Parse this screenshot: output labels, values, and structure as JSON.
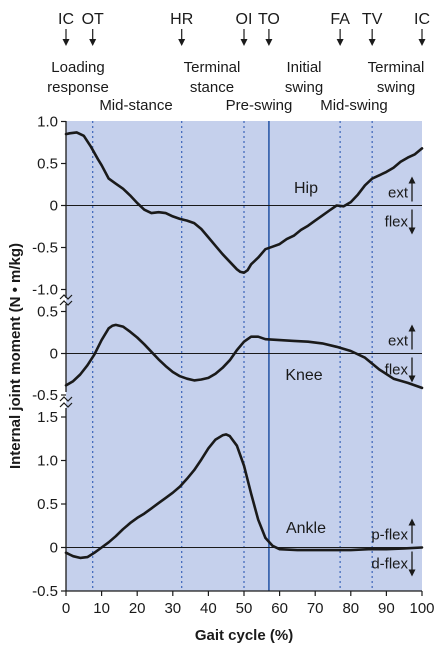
{
  "chart_data": {
    "type": "line",
    "xlabel": "Gait cycle (%)",
    "ylabel": "Internal joint moment (N • m/kg)",
    "xlim": [
      0,
      100
    ],
    "x_ticks": [
      "0",
      "10",
      "20",
      "30",
      "40",
      "50",
      "60",
      "70",
      "80",
      "90",
      "100"
    ],
    "grid": false,
    "colors": {
      "plot_bg": "#c5d0ec",
      "line": "#1a1a1a",
      "event_dotted": "#3a63b8",
      "toe_off_solid": "#2d5aa8"
    },
    "events": [
      {
        "label": "IC",
        "x": 0
      },
      {
        "label": "OT",
        "x": 7.5
      },
      {
        "label": "HR",
        "x": 32.5
      },
      {
        "label": "OI",
        "x": 50
      },
      {
        "label": "TO",
        "x": 57
      },
      {
        "label": "FA",
        "x": 77
      },
      {
        "label": "TV",
        "x": 86
      },
      {
        "label": "IC",
        "x": 100
      }
    ],
    "phases": [
      {
        "lines": [
          "Loading",
          "response"
        ]
      },
      {
        "lines": [
          "Mid-stance"
        ]
      },
      {
        "lines": [
          "Terminal",
          "stance"
        ]
      },
      {
        "lines": [
          "Pre-swing"
        ]
      },
      {
        "lines": [
          "Initial",
          "swing"
        ]
      },
      {
        "lines": [
          "Mid-swing"
        ]
      },
      {
        "lines": [
          "Terminal",
          "swing"
        ]
      }
    ],
    "panels": [
      {
        "name": "Hip",
        "ylim": [
          -1.0,
          1.0
        ],
        "y_ticks": [
          "1.0",
          "0.5",
          "0",
          "-0.5",
          "-1.0"
        ],
        "tick_values": [
          1.0,
          0.5,
          0,
          -0.5,
          -1.0
        ],
        "direction_labels": {
          "positive": "ext",
          "negative": "flex"
        },
        "x": [
          0,
          1,
          3,
          5,
          7,
          9,
          10,
          12,
          14,
          16,
          18,
          20,
          22,
          24,
          26,
          28,
          30,
          32,
          34,
          36,
          38,
          40,
          42,
          44,
          46,
          48,
          49,
          50,
          51,
          52,
          54,
          56,
          58,
          60,
          62,
          64,
          66,
          68,
          70,
          72,
          74,
          76,
          78,
          80,
          82,
          84,
          86,
          88,
          90,
          92,
          94,
          96,
          98,
          100
        ],
        "values": [
          0.85,
          0.86,
          0.87,
          0.83,
          0.7,
          0.55,
          0.48,
          0.32,
          0.26,
          0.2,
          0.12,
          0.03,
          -0.05,
          -0.09,
          -0.08,
          -0.09,
          -0.13,
          -0.16,
          -0.18,
          -0.21,
          -0.28,
          -0.38,
          -0.48,
          -0.58,
          -0.67,
          -0.76,
          -0.79,
          -0.8,
          -0.77,
          -0.7,
          -0.62,
          -0.52,
          -0.49,
          -0.46,
          -0.4,
          -0.36,
          -0.29,
          -0.24,
          -0.18,
          -0.12,
          -0.06,
          0.0,
          -0.01,
          0.04,
          0.13,
          0.24,
          0.32,
          0.36,
          0.4,
          0.45,
          0.52,
          0.57,
          0.61,
          0.68
        ]
      },
      {
        "name": "Knee",
        "ylim": [
          -0.5,
          0.5
        ],
        "y_ticks": [
          "0.5",
          "0",
          "-0.5"
        ],
        "tick_values": [
          0.5,
          0,
          -0.5
        ],
        "direction_labels": {
          "positive": "ext",
          "negative": "flex"
        },
        "x": [
          0,
          2,
          4,
          6,
          8,
          10,
          12,
          13,
          14,
          16,
          18,
          20,
          22,
          24,
          26,
          28,
          30,
          32,
          34,
          36,
          38,
          40,
          42,
          44,
          46,
          48,
          50,
          52,
          54,
          56,
          60,
          64,
          68,
          72,
          76,
          80,
          84,
          88,
          92,
          96,
          100
        ],
        "values": [
          -0.38,
          -0.33,
          -0.25,
          -0.14,
          -0.01,
          0.16,
          0.3,
          0.33,
          0.34,
          0.32,
          0.26,
          0.19,
          0.11,
          0.02,
          -0.07,
          -0.15,
          -0.22,
          -0.27,
          -0.3,
          -0.32,
          -0.31,
          -0.29,
          -0.24,
          -0.17,
          -0.08,
          0.04,
          0.14,
          0.2,
          0.2,
          0.17,
          0.16,
          0.15,
          0.14,
          0.12,
          0.08,
          0.03,
          -0.05,
          -0.19,
          -0.3,
          -0.35,
          -0.41
        ]
      },
      {
        "name": "Ankle",
        "ylim": [
          -0.5,
          1.5
        ],
        "y_ticks": [
          "1.5",
          "1.0",
          "0.5",
          "0",
          "-0.5"
        ],
        "tick_values": [
          1.5,
          1.0,
          0.5,
          0,
          -0.5
        ],
        "direction_labels": {
          "positive": "p-flex",
          "negative": "d-flex"
        },
        "x": [
          0,
          1,
          2,
          4,
          6,
          8,
          10,
          12,
          14,
          16,
          18,
          20,
          22,
          24,
          26,
          28,
          30,
          32,
          34,
          36,
          38,
          40,
          42,
          44,
          45,
          46,
          48,
          50,
          52,
          54,
          56,
          58,
          60,
          65,
          70,
          75,
          80,
          85,
          90,
          95,
          100
        ],
        "values": [
          -0.06,
          -0.08,
          -0.1,
          -0.12,
          -0.11,
          -0.06,
          0.0,
          0.06,
          0.13,
          0.21,
          0.28,
          0.34,
          0.39,
          0.45,
          0.51,
          0.57,
          0.63,
          0.7,
          0.79,
          0.89,
          1.01,
          1.14,
          1.24,
          1.29,
          1.3,
          1.28,
          1.17,
          0.94,
          0.62,
          0.32,
          0.11,
          0.02,
          -0.02,
          -0.03,
          -0.03,
          -0.03,
          -0.03,
          -0.02,
          -0.02,
          -0.01,
          0.0
        ]
      }
    ]
  }
}
